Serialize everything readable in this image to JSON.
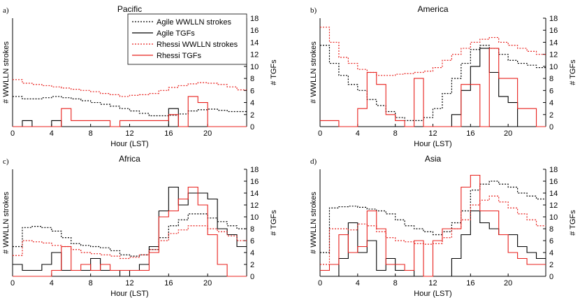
{
  "figure": {
    "legend": [
      {
        "label": "Agile WWLLN strokes",
        "color": "#000000",
        "dash": "dotted"
      },
      {
        "label": "Agile TGFs",
        "color": "#000000",
        "dash": "solid"
      },
      {
        "label": "Rhessi WWLLN strokes",
        "color": "#e8201c",
        "dash": "dotted"
      },
      {
        "label": "Rhessi TGFs",
        "color": "#e8201c",
        "dash": "solid"
      }
    ],
    "colors": {
      "agile": "#000000",
      "rhessi": "#e8201c"
    }
  },
  "chart_data": [
    {
      "type": "line",
      "panel": "a)",
      "title": "Pacific",
      "xlabel": "Hour (LST)",
      "ylabel_left": "# WWLLN strokes",
      "ylabel_right": "# TGFs",
      "xlim": [
        0,
        24
      ],
      "xticks": [
        0,
        4,
        8,
        12,
        16,
        20
      ],
      "ylim_right": [
        0,
        18
      ],
      "yticks_right": [
        0,
        2,
        4,
        6,
        8,
        10,
        12,
        14,
        16,
        18
      ],
      "x": [
        0,
        1,
        2,
        3,
        4,
        5,
        6,
        7,
        8,
        9,
        10,
        11,
        12,
        13,
        14,
        15,
        16,
        17,
        18,
        19,
        20,
        21,
        22,
        23
      ],
      "series": [
        {
          "name": "Agile WWLLN strokes",
          "values": [
            5.0,
            4.6,
            4.6,
            4.8,
            5.0,
            4.8,
            4.6,
            4.3,
            4.0,
            3.7,
            3.4,
            3.0,
            2.6,
            2.2,
            1.8,
            1.8,
            1.9,
            2.1,
            2.6,
            2.8,
            2.9,
            2.7,
            2.5,
            2.5
          ]
        },
        {
          "name": "Agile TGFs",
          "values": [
            0,
            1,
            0,
            0,
            1,
            0,
            0,
            0,
            0,
            0,
            0,
            0,
            0,
            0,
            0,
            0,
            3,
            0,
            0,
            0,
            0,
            0,
            0,
            0
          ]
        },
        {
          "name": "Rhessi WWLLN strokes",
          "values": [
            7.8,
            7.2,
            7.0,
            6.8,
            6.6,
            6.4,
            6.2,
            6.0,
            5.8,
            5.5,
            5.3,
            5.0,
            5.2,
            5.3,
            5.5,
            6.0,
            6.5,
            6.8,
            7.1,
            7.3,
            7.2,
            7.0,
            6.6,
            6.1
          ]
        },
        {
          "name": "Rhessi TGFs",
          "values": [
            0,
            0,
            0,
            0,
            0,
            3,
            1,
            1,
            1,
            1,
            0,
            1,
            1,
            1,
            1,
            1,
            2,
            0,
            5,
            4,
            0,
            0,
            0,
            0
          ]
        }
      ]
    },
    {
      "type": "line",
      "panel": "b)",
      "title": "America",
      "xlabel": "Hour (LST)",
      "ylabel_left": "# WWLLN strokes",
      "ylabel_right": "# TGFs",
      "xlim": [
        0,
        24
      ],
      "xticks": [
        0,
        4,
        8,
        12,
        16,
        20
      ],
      "ylim_right": [
        0,
        18
      ],
      "yticks_right": [
        0,
        2,
        4,
        6,
        8,
        10,
        12,
        14,
        16,
        18
      ],
      "x": [
        0,
        1,
        2,
        3,
        4,
        5,
        6,
        7,
        8,
        9,
        10,
        11,
        12,
        13,
        14,
        15,
        16,
        17,
        18,
        19,
        20,
        21,
        22,
        23
      ],
      "series": [
        {
          "name": "Agile WWLLN strokes",
          "values": [
            13.5,
            10.5,
            8.5,
            7.0,
            6.0,
            4.5,
            3.5,
            2.5,
            1.5,
            1.0,
            1.0,
            1.5,
            3.0,
            5.5,
            8.0,
            10.5,
            12.8,
            13.5,
            13.0,
            12.0,
            11.0,
            10.5,
            10.2,
            9.8
          ]
        },
        {
          "name": "Agile TGFs",
          "values": [
            0,
            0,
            0,
            0,
            0,
            0,
            0,
            0,
            0,
            0,
            0,
            0,
            0,
            0,
            2,
            6,
            10,
            13,
            9,
            5,
            4,
            0,
            0,
            0
          ]
        },
        {
          "name": "Rhessi WWLLN strokes",
          "values": [
            16.5,
            14.0,
            11.5,
            10.5,
            9.5,
            9.0,
            8.5,
            8.5,
            8.7,
            8.8,
            9.0,
            9.2,
            9.8,
            11.0,
            12.0,
            13.0,
            14.0,
            14.5,
            14.8,
            14.0,
            13.5,
            13.0,
            12.5,
            12.0
          ]
        },
        {
          "name": "Rhessi TGFs",
          "values": [
            1,
            1,
            0,
            0,
            3,
            9,
            7,
            2,
            1,
            0,
            8,
            0,
            0,
            0,
            0,
            7,
            7,
            0,
            13,
            8,
            8,
            3,
            3,
            0
          ]
        }
      ]
    },
    {
      "type": "line",
      "panel": "c)",
      "title": "Africa",
      "xlabel": "Hour (LST)",
      "ylabel_left": "# WWLLN strokes",
      "ylabel_right": "# TGFs",
      "xlim": [
        0,
        24
      ],
      "xticks": [
        0,
        4,
        8,
        12,
        16,
        20
      ],
      "ylim_right": [
        0,
        18
      ],
      "yticks_right": [
        0,
        2,
        4,
        6,
        8,
        10,
        12,
        14,
        16,
        18
      ],
      "x": [
        0,
        1,
        2,
        3,
        4,
        5,
        6,
        7,
        8,
        9,
        10,
        11,
        12,
        13,
        14,
        15,
        16,
        17,
        18,
        19,
        20,
        21,
        22,
        23
      ],
      "series": [
        {
          "name": "Agile WWLLN strokes",
          "values": [
            5.0,
            8.2,
            8.4,
            8.2,
            7.6,
            6.5,
            5.5,
            5.2,
            5.0,
            4.8,
            4.3,
            3.6,
            3.4,
            3.6,
            4.5,
            6.5,
            8.5,
            9.5,
            10.5,
            10.5,
            9.8,
            9.2,
            8.5,
            8.0
          ]
        },
        {
          "name": "Agile TGFs",
          "values": [
            2,
            1,
            1,
            2,
            4,
            1,
            1,
            1,
            3,
            1,
            1,
            0,
            1,
            2,
            5,
            11,
            15,
            12,
            14,
            14,
            13,
            8,
            7,
            5
          ]
        },
        {
          "name": "Rhessi WWLLN strokes",
          "values": [
            3.5,
            6.0,
            5.8,
            5.6,
            5.2,
            5.0,
            4.5,
            4.0,
            3.8,
            3.6,
            3.4,
            3.0,
            3.2,
            3.6,
            4.5,
            6.0,
            7.2,
            7.8,
            8.5,
            8.5,
            8.0,
            7.5,
            6.8,
            6.0
          ]
        },
        {
          "name": "Rhessi TGFs",
          "values": [
            0,
            0,
            0,
            0,
            1,
            5,
            1,
            2,
            1,
            2,
            1,
            1,
            1,
            1,
            4,
            10,
            11,
            13,
            15,
            12,
            7,
            2,
            0,
            0
          ]
        }
      ]
    },
    {
      "type": "line",
      "panel": "d)",
      "title": "Asia",
      "xlabel": "Hour (LST)",
      "ylabel_left": "# WWLLN strokes",
      "ylabel_right": "# TGFs",
      "xlim": [
        0,
        24
      ],
      "xticks": [
        0,
        4,
        8,
        12,
        16,
        20
      ],
      "ylim_right": [
        0,
        18
      ],
      "yticks_right": [
        0,
        2,
        4,
        6,
        8,
        10,
        12,
        14,
        16,
        18
      ],
      "x": [
        0,
        1,
        2,
        3,
        4,
        5,
        6,
        7,
        8,
        9,
        10,
        11,
        12,
        13,
        14,
        15,
        16,
        17,
        18,
        19,
        20,
        21,
        22,
        23
      ],
      "series": [
        {
          "name": "Agile WWLLN strokes",
          "values": [
            4.0,
            11.5,
            11.7,
            11.8,
            11.6,
            11.3,
            11.0,
            10.5,
            9.5,
            8.5,
            8.0,
            7.5,
            7.0,
            7.5,
            9.0,
            11.0,
            14.5,
            15.5,
            16.0,
            15.5,
            15.0,
            14.0,
            13.5,
            13.0
          ]
        },
        {
          "name": "Agile TGFs",
          "values": [
            0,
            0,
            3,
            9,
            4,
            6,
            1,
            3,
            1,
            1,
            0,
            0,
            0,
            0,
            3,
            7,
            11,
            9,
            8,
            7,
            7,
            5,
            4,
            3
          ]
        },
        {
          "name": "Rhessi WWLLN strokes",
          "values": [
            2.0,
            8.0,
            8.0,
            7.8,
            8.8,
            8.5,
            7.5,
            6.5,
            6.0,
            5.8,
            5.5,
            5.4,
            5.5,
            6.5,
            8.0,
            9.5,
            12.0,
            12.8,
            13.5,
            12.5,
            11.5,
            10.5,
            9.5,
            8.5
          ]
        },
        {
          "name": "Rhessi TGFs",
          "values": [
            1,
            2,
            7,
            4,
            5,
            11,
            8,
            2,
            2,
            1,
            6,
            0,
            6,
            8,
            8,
            15,
            17,
            11,
            11,
            7,
            4,
            3,
            2,
            2
          ]
        }
      ]
    }
  ]
}
